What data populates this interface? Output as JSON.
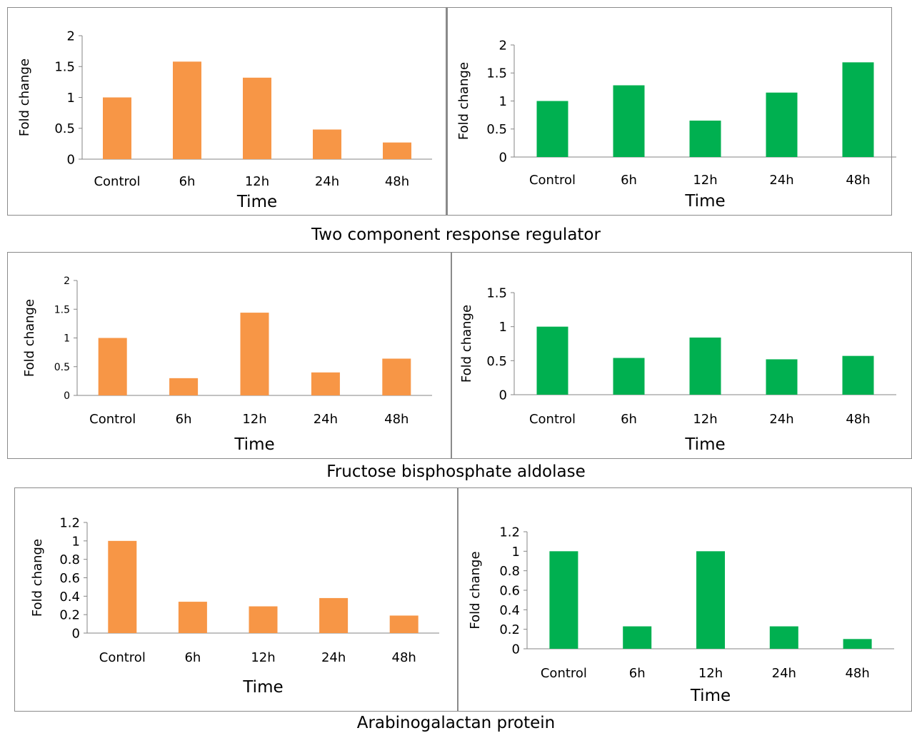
{
  "colors": {
    "orange": "#F79646",
    "green": "#00B050",
    "axis": "#868686"
  },
  "captions": [
    "Two component response regulator",
    "Fructose bisphosphate aldolase",
    "Arabinogalactan protein"
  ],
  "chart_data": [
    {
      "type": "bar",
      "categories": [
        "Control",
        "6h",
        "12h",
        "24h",
        "48h"
      ],
      "values": [
        1.0,
        1.58,
        1.32,
        0.48,
        0.27
      ],
      "xlabel": "Time",
      "ylabel": "Fold change",
      "ylim": [
        0,
        2
      ],
      "yticks": [
        "0",
        "0.5",
        "1",
        "1.5",
        "2"
      ],
      "color": "#F79646"
    },
    {
      "type": "bar",
      "categories": [
        "Control",
        "6h",
        "12h",
        "24h",
        "48h"
      ],
      "values": [
        1.0,
        1.28,
        0.65,
        1.15,
        1.69
      ],
      "xlabel": "Time",
      "ylabel": "Fold change",
      "ylim": [
        0,
        2
      ],
      "yticks": [
        "0",
        "0.5",
        "1",
        "1.5",
        "2"
      ],
      "color": "#00B050"
    },
    {
      "type": "bar",
      "categories": [
        "Control",
        "6h",
        "12h",
        "24h",
        "48h"
      ],
      "values": [
        1.0,
        0.3,
        1.44,
        0.4,
        0.64
      ],
      "xlabel": "Time",
      "ylabel": "Fold change",
      "ylim": [
        0,
        2
      ],
      "yticks": [
        "0",
        "0.5",
        "1",
        "1.5",
        "2"
      ],
      "color": "#F79646"
    },
    {
      "type": "bar",
      "categories": [
        "Control",
        "6h",
        "12h",
        "24h",
        "48h"
      ],
      "values": [
        1.0,
        0.54,
        0.84,
        0.52,
        0.57
      ],
      "xlabel": "Time",
      "ylabel": "Fold change",
      "ylim": [
        0,
        1.5
      ],
      "yticks": [
        "0",
        "0.5",
        "1",
        "1.5"
      ],
      "color": "#00B050"
    },
    {
      "type": "bar",
      "categories": [
        "Control",
        "6h",
        "12h",
        "24h",
        "48h"
      ],
      "values": [
        1.0,
        0.34,
        0.29,
        0.38,
        0.19
      ],
      "xlabel": "Time",
      "ylabel": "Fold change",
      "ylim": [
        0,
        1.2
      ],
      "yticks": [
        "0",
        "0.2",
        "0.4",
        "0.6",
        "0.8",
        "1",
        "1.2"
      ],
      "color": "#F79646"
    },
    {
      "type": "bar",
      "categories": [
        "Control",
        "6h",
        "12h",
        "24h",
        "48h"
      ],
      "values": [
        1.0,
        0.23,
        1.0,
        0.23,
        0.1
      ],
      "xlabel": "Time",
      "ylabel": "Fold change",
      "ylim": [
        0,
        1.2
      ],
      "yticks": [
        "0",
        "0.2",
        "0.4",
        "0.6",
        "0.8",
        "1",
        "1.2"
      ],
      "color": "#00B050"
    }
  ]
}
